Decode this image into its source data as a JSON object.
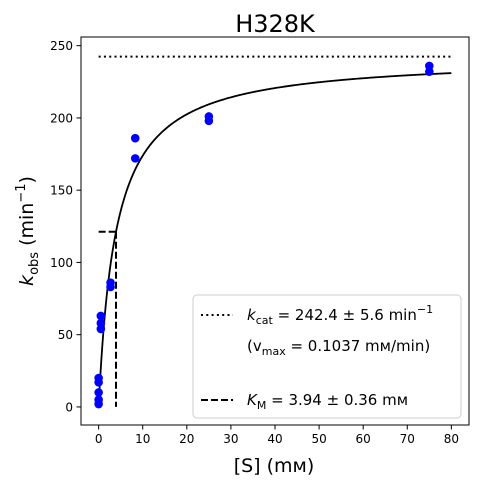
{
  "chart_data": {
    "type": "scatter",
    "title": "H328K",
    "xlabel": "[S] (mᴍ)",
    "ylabel": "k_obs (min⁻¹)",
    "ylabel_parts": {
      "main": "k",
      "sub": "obs",
      "tail": " (min",
      "sup": "−1",
      "close": ")"
    },
    "xlim": [
      -4,
      84
    ],
    "ylim": [
      -12.5,
      256
    ],
    "xticks": [
      0,
      10,
      20,
      30,
      40,
      50,
      60,
      70,
      80
    ],
    "yticks": [
      0,
      50,
      100,
      150,
      200,
      250
    ],
    "grid": false,
    "legend_position": "lower-right",
    "series": [
      {
        "kind": "points",
        "color": "#0000ff",
        "points": [
          [
            0,
            2
          ],
          [
            0,
            5
          ],
          [
            0,
            10
          ],
          [
            0,
            17
          ],
          [
            0,
            20
          ],
          [
            0.5,
            54
          ],
          [
            0.5,
            58
          ],
          [
            0.5,
            63
          ],
          [
            2.7,
            83
          ],
          [
            2.7,
            86
          ],
          [
            8.3,
            172
          ],
          [
            8.3,
            186
          ],
          [
            25,
            198
          ],
          [
            25,
            201
          ],
          [
            75,
            232
          ],
          [
            75,
            236
          ]
        ]
      },
      {
        "kind": "michaelis_menten_fit",
        "color": "#000000",
        "kcat": 242.4,
        "km": 3.94,
        "x_range": [
          0,
          80
        ]
      },
      {
        "kind": "kcat_line",
        "color": "#000000",
        "style": "dotted",
        "y": 242.4,
        "x_range": [
          0,
          80
        ]
      },
      {
        "kind": "km_marker",
        "color": "#000000",
        "style": "dashed",
        "x": 3.94,
        "y": 121.2,
        "h_from_x": 0
      }
    ],
    "legend": [
      {
        "style": "dotted",
        "prefix": "k",
        "sub": "cat",
        "text": " = 242.4 ± 5.6 min",
        "sup": "−1"
      },
      {
        "style": "none",
        "prefix": "(v",
        "sub": "max",
        "text": " = 0.1037 mᴍ/min)",
        "sup": ""
      },
      {
        "style": "dashed",
        "prefix": "K",
        "sub": "M",
        "text": " = 3.94 ± 0.36 mᴍ",
        "sup": ""
      }
    ]
  }
}
